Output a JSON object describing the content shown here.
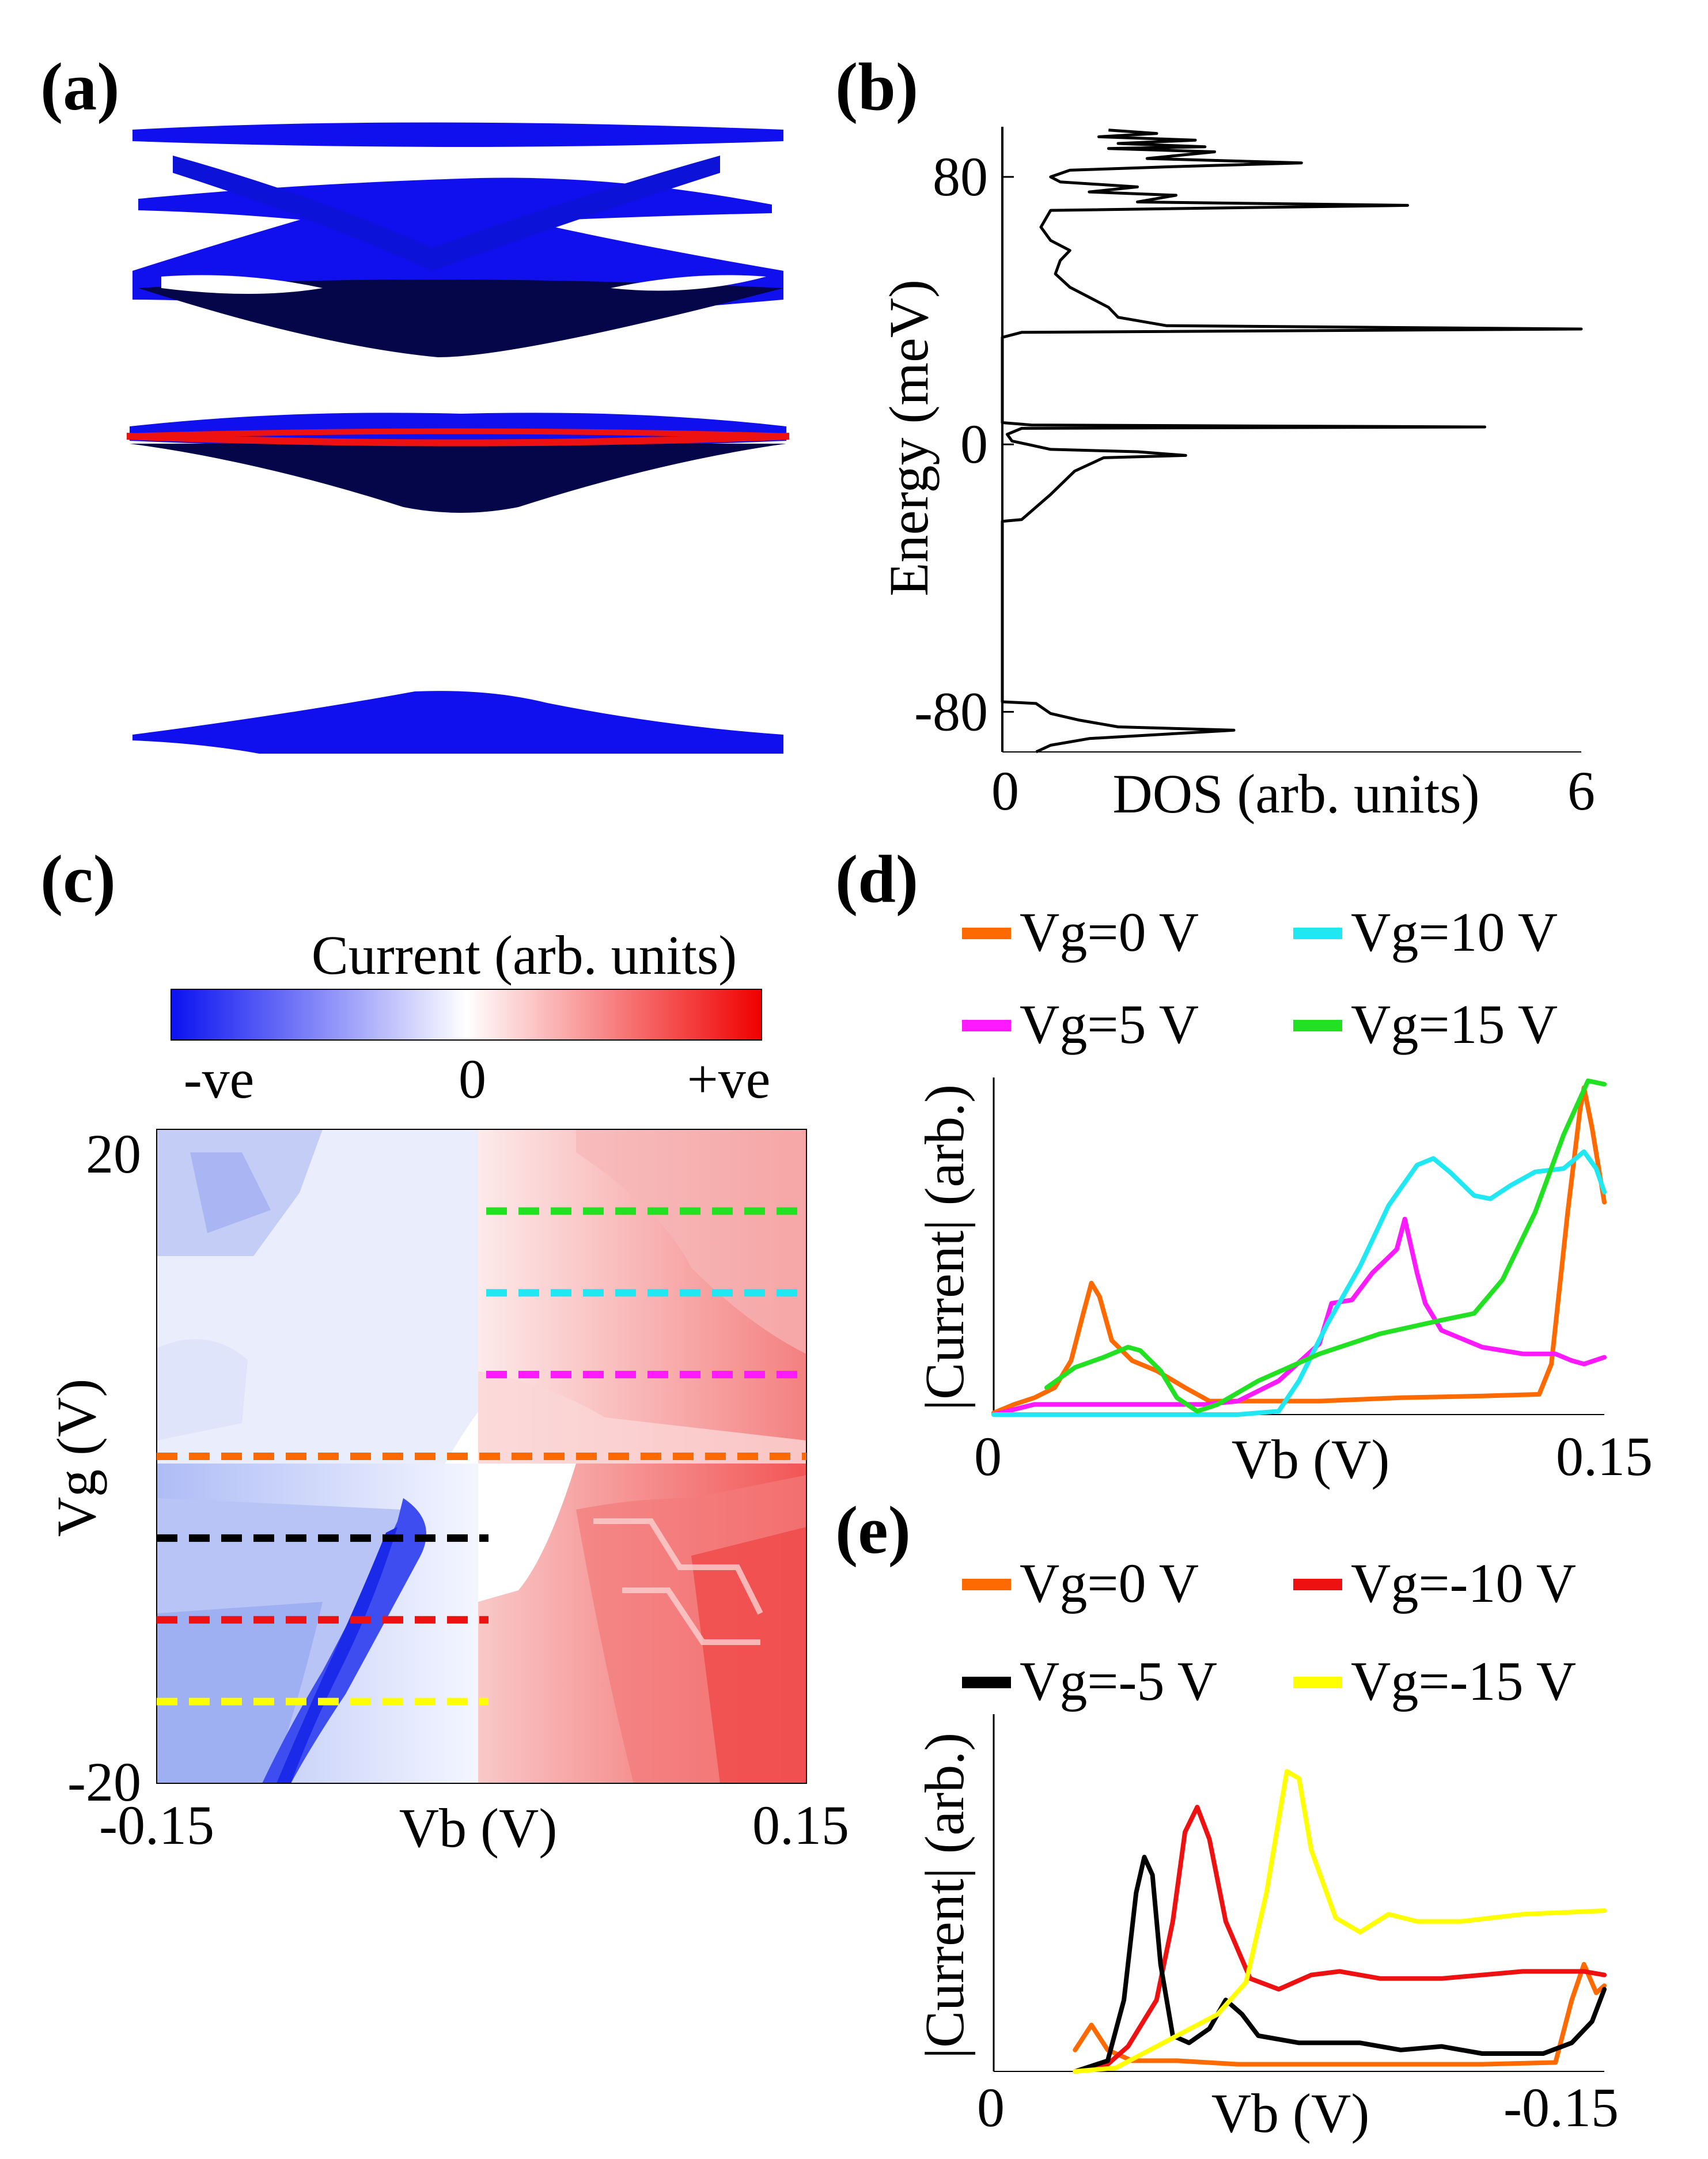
{
  "panels": {
    "a": {
      "label": "(a)"
    },
    "b": {
      "label": "(b)"
    },
    "c": {
      "label": "(c)"
    },
    "d": {
      "label": "(d)"
    },
    "e": {
      "label": "(e)"
    }
  },
  "colors": {
    "band_blue": "#1010ee",
    "band_dark": "#05064a",
    "band_red": "#ee1111",
    "orange": "#ff6a00",
    "cyan": "#20e8f2",
    "magenta": "#ff19ff",
    "green": "#22e022",
    "red": "#ee1111",
    "black": "#000000",
    "yellow": "#ffff00"
  },
  "chart_data": [
    {
      "id": "b",
      "type": "line",
      "title": "",
      "xlabel": "DOS (arb. units)",
      "ylabel": "Energy (meV)",
      "xlim": [
        0,
        6
      ],
      "ylim": [
        -92,
        95
      ],
      "xticks": [
        "0",
        "6"
      ],
      "yticks": [
        "80",
        "0",
        "-80"
      ],
      "ytick_values": [
        80,
        0,
        -80
      ],
      "series": [
        {
          "name": "DOS",
          "points": [
            [
              0.35,
              -92
            ],
            [
              0.5,
              -90
            ],
            [
              0.9,
              -88
            ],
            [
              1.5,
              -87
            ],
            [
              2.4,
              -85.5
            ],
            [
              1.2,
              -84.5
            ],
            [
              0.8,
              -82.5
            ],
            [
              0.5,
              -80.5
            ],
            [
              0.35,
              -77.5
            ],
            [
              0,
              -77
            ],
            [
              0,
              -23
            ],
            [
              0.2,
              -22.5
            ],
            [
              0.3,
              -20
            ],
            [
              0.5,
              -15
            ],
            [
              0.75,
              -8
            ],
            [
              1.05,
              -4
            ],
            [
              1.9,
              -3.3
            ],
            [
              1.4,
              -2.2
            ],
            [
              0.5,
              -1.5
            ],
            [
              0.1,
              1
            ],
            [
              0.05,
              3
            ],
            [
              0.2,
              4.8
            ],
            [
              5.0,
              5.2
            ],
            [
              0.3,
              5.8
            ],
            [
              0,
              6.5
            ],
            [
              0,
              32
            ],
            [
              0.2,
              33.5
            ],
            [
              6,
              34.5
            ],
            [
              1.7,
              35.5
            ],
            [
              1.2,
              38
            ],
            [
              1.1,
              41
            ],
            [
              0.9,
              44
            ],
            [
              0.7,
              47
            ],
            [
              0.55,
              51
            ],
            [
              0.6,
              55
            ],
            [
              0.7,
              58
            ],
            [
              0.5,
              61
            ],
            [
              0.4,
              65
            ],
            [
              0.5,
              70
            ],
            [
              4.2,
              71.5
            ],
            [
              1.4,
              72.5
            ],
            [
              1.8,
              74.5
            ],
            [
              0.9,
              75.5
            ],
            [
              1.4,
              77
            ],
            [
              0.6,
              78.5
            ],
            [
              0.5,
              80
            ],
            [
              0.7,
              82
            ],
            [
              1.7,
              83
            ],
            [
              3.1,
              84.2
            ],
            [
              1.5,
              85.5
            ],
            [
              2.2,
              87.5
            ],
            [
              1.1,
              88.5
            ],
            [
              2.1,
              89
            ],
            [
              1.2,
              90
            ],
            [
              2.0,
              91
            ],
            [
              1.0,
              92
            ],
            [
              1.6,
              93
            ],
            [
              1.1,
              94
            ]
          ]
        }
      ]
    },
    {
      "id": "c",
      "type": "heatmap",
      "title": "Current (arb. units)",
      "colorbar_ticks": [
        "-ve",
        "0",
        "+ve"
      ],
      "xlabel": "Vb (V)",
      "ylabel": "Vg (V)",
      "xlim": [
        -0.15,
        0.15
      ],
      "ylim": [
        -20,
        20
      ],
      "xticks": [
        "-0.15",
        "0.15"
      ],
      "yticks": [
        "20",
        "-20"
      ],
      "cuts": [
        {
          "vg": 15,
          "x_from": 0.0,
          "x_to": 0.15,
          "color": "green"
        },
        {
          "vg": 10,
          "x_from": 0.0,
          "x_to": 0.15,
          "color": "cyan"
        },
        {
          "vg": 5,
          "x_from": 0.0,
          "x_to": 0.15,
          "color": "magenta"
        },
        {
          "vg": 0,
          "x_from": -0.15,
          "x_to": 0.15,
          "color": "orange"
        },
        {
          "vg": -5,
          "x_from": -0.15,
          "x_to": 0.0,
          "color": "black"
        },
        {
          "vg": -10,
          "x_from": -0.15,
          "x_to": 0.0,
          "color": "red"
        },
        {
          "vg": -15,
          "x_from": -0.15,
          "x_to": 0.0,
          "color": "yellow"
        }
      ]
    },
    {
      "id": "d",
      "type": "line",
      "title": "",
      "xlabel": "Vb (V)",
      "ylabel": "|Current| (arb.)",
      "xlim": [
        0,
        0.15
      ],
      "ylim": [
        0,
        1
      ],
      "xticks": [
        "0",
        "0.15"
      ],
      "legend": [
        {
          "label": "Vg=0 V",
          "color": "orange"
        },
        {
          "label": "Vg=10 V",
          "color": "cyan"
        },
        {
          "label": "Vg=5 V",
          "color": "magenta"
        },
        {
          "label": "Vg=15 V",
          "color": "green"
        }
      ],
      "series": [
        {
          "name": "Vg=0 V",
          "color": "orange",
          "points": [
            [
              0.0,
              0.005
            ],
            [
              0.005,
              0.03
            ],
            [
              0.01,
              0.05
            ],
            [
              0.015,
              0.08
            ],
            [
              0.019,
              0.16
            ],
            [
              0.022,
              0.3
            ],
            [
              0.024,
              0.39
            ],
            [
              0.026,
              0.35
            ],
            [
              0.029,
              0.22
            ],
            [
              0.034,
              0.16
            ],
            [
              0.04,
              0.13
            ],
            [
              0.047,
              0.08
            ],
            [
              0.053,
              0.04
            ],
            [
              0.06,
              0.04
            ],
            [
              0.08,
              0.04
            ],
            [
              0.1,
              0.05
            ],
            [
              0.12,
              0.055
            ],
            [
              0.134,
              0.06
            ],
            [
              0.137,
              0.15
            ],
            [
              0.141,
              0.6
            ],
            [
              0.144,
              0.9
            ],
            [
              0.145,
              0.97
            ],
            [
              0.147,
              0.85
            ],
            [
              0.15,
              0.63
            ]
          ]
        },
        {
          "name": "Vg=5 V",
          "color": "magenta",
          "points": [
            [
              0.0,
              0.0
            ],
            [
              0.01,
              0.03
            ],
            [
              0.03,
              0.03
            ],
            [
              0.052,
              0.03
            ],
            [
              0.06,
              0.04
            ],
            [
              0.07,
              0.1
            ],
            [
              0.08,
              0.21
            ],
            [
              0.083,
              0.33
            ],
            [
              0.088,
              0.34
            ],
            [
              0.093,
              0.42
            ],
            [
              0.099,
              0.49
            ],
            [
              0.101,
              0.58
            ],
            [
              0.104,
              0.42
            ],
            [
              0.106,
              0.33
            ],
            [
              0.11,
              0.25
            ],
            [
              0.12,
              0.2
            ],
            [
              0.13,
              0.18
            ],
            [
              0.138,
              0.18
            ],
            [
              0.142,
              0.16
            ],
            [
              0.145,
              0.15
            ],
            [
              0.15,
              0.17
            ]
          ]
        },
        {
          "name": "Vg=10 V",
          "color": "cyan",
          "points": [
            [
              0.0,
              0.0
            ],
            [
              0.06,
              0.0
            ],
            [
              0.07,
              0.01
            ],
            [
              0.075,
              0.1
            ],
            [
              0.082,
              0.27
            ],
            [
              0.09,
              0.44
            ],
            [
              0.097,
              0.62
            ],
            [
              0.104,
              0.74
            ],
            [
              0.108,
              0.76
            ],
            [
              0.112,
              0.72
            ],
            [
              0.118,
              0.65
            ],
            [
              0.122,
              0.64
            ],
            [
              0.127,
              0.68
            ],
            [
              0.133,
              0.72
            ],
            [
              0.14,
              0.73
            ],
            [
              0.145,
              0.78
            ],
            [
              0.148,
              0.73
            ],
            [
              0.15,
              0.66
            ]
          ]
        },
        {
          "name": "Vg=15 V",
          "color": "green",
          "points": [
            [
              0.013,
              0.08
            ],
            [
              0.02,
              0.14
            ],
            [
              0.027,
              0.17
            ],
            [
              0.033,
              0.2
            ],
            [
              0.036,
              0.19
            ],
            [
              0.041,
              0.13
            ],
            [
              0.045,
              0.05
            ],
            [
              0.05,
              0.01
            ],
            [
              0.055,
              0.03
            ],
            [
              0.065,
              0.1
            ],
            [
              0.08,
              0.18
            ],
            [
              0.095,
              0.24
            ],
            [
              0.11,
              0.28
            ],
            [
              0.118,
              0.3
            ],
            [
              0.125,
              0.4
            ],
            [
              0.133,
              0.6
            ],
            [
              0.14,
              0.83
            ],
            [
              0.146,
              0.99
            ],
            [
              0.15,
              0.98
            ]
          ]
        }
      ]
    },
    {
      "id": "e",
      "type": "line",
      "title": "",
      "xlabel": "Vb (V)",
      "ylabel": "|Current| (arb.)",
      "xlim": [
        0,
        -0.15
      ],
      "ylim": [
        0,
        1
      ],
      "xticks": [
        "0",
        "-0.15"
      ],
      "legend": [
        {
          "label": "Vg=0 V",
          "color": "orange"
        },
        {
          "label": "Vg=-10 V",
          "color": "red"
        },
        {
          "label": "Vg=-5 V",
          "color": "black"
        },
        {
          "label": "Vg=-15 V",
          "color": "yellow"
        }
      ],
      "series": [
        {
          "name": "Vg=0 V",
          "color": "orange",
          "points": [
            [
              -0.02,
              0.06
            ],
            [
              -0.024,
              0.13
            ],
            [
              -0.028,
              0.06
            ],
            [
              -0.034,
              0.03
            ],
            [
              -0.045,
              0.03
            ],
            [
              -0.06,
              0.02
            ],
            [
              -0.09,
              0.02
            ],
            [
              -0.12,
              0.02
            ],
            [
              -0.138,
              0.025
            ],
            [
              -0.142,
              0.2
            ],
            [
              -0.145,
              0.3
            ],
            [
              -0.148,
              0.22
            ],
            [
              -0.15,
              0.24
            ]
          ]
        },
        {
          "name": "Vg=-10 V",
          "color": "red",
          "points": [
            [
              -0.02,
              0.0
            ],
            [
              -0.028,
              0.02
            ],
            [
              -0.033,
              0.07
            ],
            [
              -0.04,
              0.2
            ],
            [
              -0.044,
              0.42
            ],
            [
              -0.047,
              0.67
            ],
            [
              -0.05,
              0.74
            ],
            [
              -0.053,
              0.65
            ],
            [
              -0.057,
              0.42
            ],
            [
              -0.063,
              0.26
            ],
            [
              -0.07,
              0.23
            ],
            [
              -0.078,
              0.27
            ],
            [
              -0.085,
              0.28
            ],
            [
              -0.095,
              0.26
            ],
            [
              -0.11,
              0.26
            ],
            [
              -0.13,
              0.28
            ],
            [
              -0.145,
              0.28
            ],
            [
              -0.15,
              0.27
            ]
          ]
        },
        {
          "name": "Vg=-5 V",
          "color": "black",
          "points": [
            [
              -0.02,
              0.0
            ],
            [
              -0.028,
              0.03
            ],
            [
              -0.032,
              0.2
            ],
            [
              -0.035,
              0.5
            ],
            [
              -0.037,
              0.6
            ],
            [
              -0.039,
              0.55
            ],
            [
              -0.041,
              0.3
            ],
            [
              -0.044,
              0.1
            ],
            [
              -0.048,
              0.08
            ],
            [
              -0.053,
              0.12
            ],
            [
              -0.057,
              0.2
            ],
            [
              -0.061,
              0.16
            ],
            [
              -0.065,
              0.1
            ],
            [
              -0.075,
              0.08
            ],
            [
              -0.09,
              0.08
            ],
            [
              -0.1,
              0.06
            ],
            [
              -0.11,
              0.07
            ],
            [
              -0.12,
              0.05
            ],
            [
              -0.135,
              0.05
            ],
            [
              -0.142,
              0.08
            ],
            [
              -0.147,
              0.14
            ],
            [
              -0.15,
              0.23
            ]
          ]
        },
        {
          "name": "Vg=-15 V",
          "color": "yellow",
          "points": [
            [
              -0.02,
              0.0
            ],
            [
              -0.03,
              0.01
            ],
            [
              -0.035,
              0.04
            ],
            [
              -0.045,
              0.1
            ],
            [
              -0.055,
              0.16
            ],
            [
              -0.062,
              0.25
            ],
            [
              -0.067,
              0.5
            ],
            [
              -0.072,
              0.84
            ],
            [
              -0.075,
              0.82
            ],
            [
              -0.078,
              0.62
            ],
            [
              -0.084,
              0.43
            ],
            [
              -0.09,
              0.39
            ],
            [
              -0.097,
              0.44
            ],
            [
              -0.104,
              0.42
            ],
            [
              -0.115,
              0.42
            ],
            [
              -0.13,
              0.44
            ],
            [
              -0.15,
              0.45
            ]
          ]
        }
      ]
    }
  ]
}
